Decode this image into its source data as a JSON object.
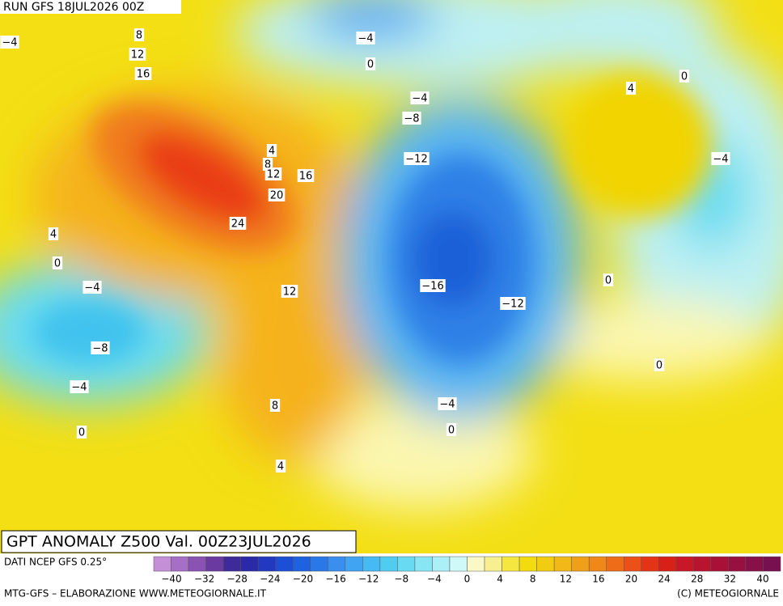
{
  "header": {
    "run": "RUN GFS 18JUL2026 00Z"
  },
  "map": {
    "contour_labels": [
      "−4",
      "8",
      "12",
      "16",
      "−4",
      "0",
      "−4",
      "−8",
      "4",
      "8",
      "12",
      "16",
      "−12",
      "20",
      "24",
      "4",
      "0",
      "−4",
      "4",
      "0",
      "−4",
      "12",
      "−16",
      "−12",
      "0",
      "−8",
      "−4",
      "0",
      "8",
      "−4",
      "0",
      "0",
      "4"
    ]
  },
  "title": "GPT ANOMALY Z500 Val. 00Z23JUL2026",
  "source": "DATI NCEP GFS 0.25°",
  "colorbar": {
    "labels": [
      "−40",
      "−32",
      "−28",
      "−24",
      "−20",
      "−16",
      "−12",
      "−8",
      "−4",
      "0",
      "4",
      "8",
      "12",
      "16",
      "20",
      "24",
      "28",
      "32",
      "40"
    ]
  },
  "footer": {
    "left": "MTG-GFS – ELABORAZIONE WWW.METEOGIORNALE.IT",
    "right": "(C) METEOGIORNALE"
  }
}
